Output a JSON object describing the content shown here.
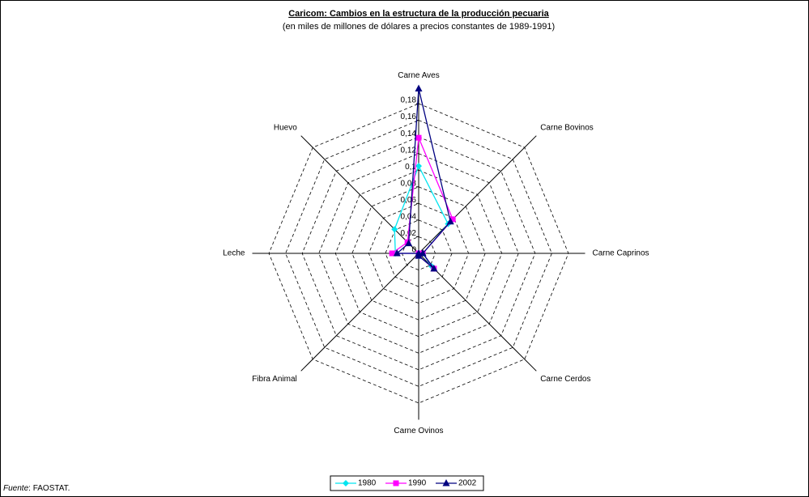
{
  "chart_data": {
    "type": "radar",
    "title": "Caricom: Cambios en la estructura de la producción pecuaria",
    "subtitle": "(en miles de millones de dólares a precios constantes de 1989-1991)",
    "categories": [
      "Carne Aves",
      "Carne Bovinos",
      "Carne Caprinos",
      "Carne Cerdos",
      "Carne Ovinos",
      "Fibra Animal",
      "Leche",
      "Huevo"
    ],
    "series": [
      {
        "name": "1980",
        "color": "#00e5f0",
        "marker": "diamond",
        "values": [
          0.105,
          0.05,
          0.005,
          0.022,
          0.003,
          0,
          0.028,
          0.041
        ]
      },
      {
        "name": "1990",
        "color": "#ff00ff",
        "marker": "square",
        "values": [
          0.139,
          0.058,
          0.005,
          0.026,
          0.003,
          0,
          0.032,
          0.019
        ]
      },
      {
        "name": "2002",
        "color": "#000080",
        "marker": "triangle",
        "values": [
          0.198,
          0.054,
          0.005,
          0.026,
          0.003,
          0,
          0.026,
          0.017
        ]
      }
    ],
    "ylim": [
      0,
      0.2
    ],
    "yticks": [
      0,
      {
        "value": 0.02,
        "label": "0,02"
      },
      {
        "value": 0.04,
        "label": "0,04"
      },
      {
        "value": 0.06,
        "label": "0,06"
      },
      {
        "value": 0.08,
        "label": "0,08"
      },
      {
        "value": 0.1,
        "label": "0,1"
      },
      {
        "value": 0.12,
        "label": "0,12"
      },
      {
        "value": 0.14,
        "label": "0,14"
      },
      {
        "value": 0.16,
        "label": "0,16"
      },
      {
        "value": 0.18,
        "label": "0,18"
      }
    ],
    "grid": true,
    "legend": "bottom",
    "source_label": "Fuente",
    "source_text": ": FAOSTAT."
  }
}
